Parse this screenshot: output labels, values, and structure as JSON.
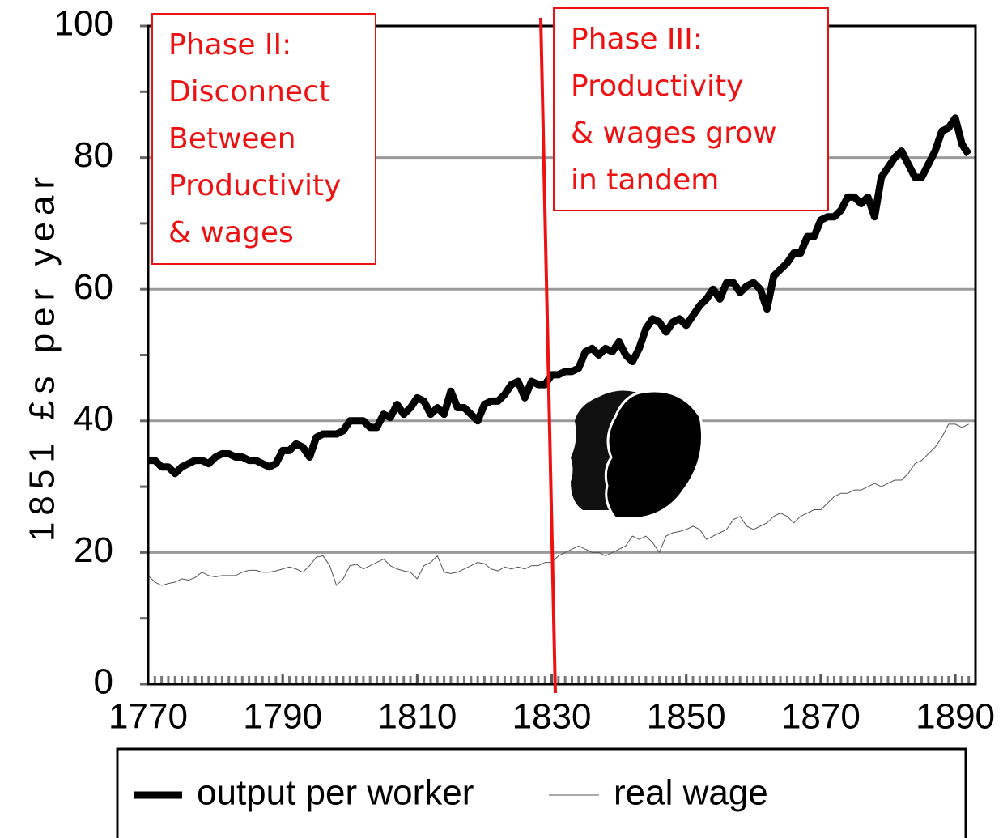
{
  "chart_data": {
    "type": "line",
    "ylabel": "1851 £s per year",
    "x": [
      1770,
      1771,
      1772,
      1773,
      1774,
      1775,
      1776,
      1777,
      1778,
      1779,
      1780,
      1781,
      1782,
      1783,
      1784,
      1785,
      1786,
      1787,
      1788,
      1789,
      1790,
      1791,
      1792,
      1793,
      1794,
      1795,
      1796,
      1797,
      1798,
      1799,
      1800,
      1801,
      1802,
      1803,
      1804,
      1805,
      1806,
      1807,
      1808,
      1809,
      1810,
      1811,
      1812,
      1813,
      1814,
      1815,
      1816,
      1817,
      1818,
      1819,
      1820,
      1821,
      1822,
      1823,
      1824,
      1825,
      1826,
      1827,
      1828,
      1829,
      1830,
      1831,
      1832,
      1833,
      1834,
      1835,
      1836,
      1837,
      1838,
      1839,
      1840,
      1841,
      1842,
      1843,
      1844,
      1845,
      1846,
      1847,
      1848,
      1849,
      1850,
      1851,
      1852,
      1853,
      1854,
      1855,
      1856,
      1857,
      1858,
      1859,
      1860,
      1861,
      1862,
      1863,
      1864,
      1865,
      1866,
      1867,
      1868,
      1869,
      1870,
      1871,
      1872,
      1873,
      1874,
      1875,
      1876,
      1877,
      1878,
      1879,
      1880,
      1881,
      1882,
      1883,
      1884,
      1885,
      1886,
      1887,
      1888,
      1889,
      1890,
      1891,
      1892
    ],
    "series": [
      {
        "name": "output per worker",
        "color": "#000000",
        "width": 9,
        "values": [
          34,
          34,
          33,
          33,
          32,
          33,
          33.5,
          34,
          34,
          33.5,
          34.5,
          35,
          35,
          34.5,
          34.5,
          34,
          34,
          33.5,
          33,
          33.5,
          35.5,
          35.5,
          36.5,
          36,
          34.5,
          37.5,
          38,
          38,
          38,
          38.5,
          40,
          40,
          40,
          39,
          39,
          41,
          40.5,
          42.5,
          41,
          42,
          43.5,
          43,
          41,
          42,
          41,
          44.5,
          42,
          42,
          41,
          40,
          42.5,
          43,
          43,
          44,
          45.5,
          46,
          43.5,
          46,
          45.5,
          45.5,
          47,
          47,
          47.5,
          47.5,
          48,
          50.5,
          51,
          50,
          51,
          50.5,
          52,
          50,
          49,
          51,
          54,
          55.5,
          55,
          53.5,
          55,
          55.5,
          54.5,
          56,
          57.5,
          58.5,
          60,
          58.5,
          61,
          61,
          59.5,
          60.5,
          61,
          60,
          57,
          62,
          63,
          64,
          65.5,
          65.5,
          68,
          68,
          70.5,
          71,
          71,
          72,
          74,
          74,
          73,
          74,
          71,
          77,
          78.5,
          80,
          81,
          79,
          77,
          77,
          79,
          81,
          84,
          84.5,
          86,
          82,
          80.5
        ]
      },
      {
        "name": "real wage",
        "color": "#555555",
        "width": 1,
        "values": [
          16.5,
          15.5,
          15,
          15.3,
          15.5,
          16,
          15.8,
          16.2,
          17,
          16.5,
          16.3,
          16.5,
          16.5,
          16.5,
          17,
          17.3,
          17.3,
          17,
          17,
          17.2,
          17.5,
          17.8,
          17.5,
          17,
          18,
          19.3,
          19.5,
          18,
          15,
          16,
          18,
          18.2,
          17.5,
          18,
          18.5,
          19,
          18,
          17.5,
          17.2,
          17,
          16,
          18,
          18.5,
          19.5,
          17,
          16.8,
          17,
          17.5,
          18,
          18.5,
          18.3,
          17.5,
          17.2,
          17.8,
          17.5,
          17.8,
          17.5,
          18,
          18,
          18.5,
          18.5,
          19.5,
          20,
          20.5,
          21,
          20.5,
          20,
          20,
          19.5,
          20,
          20.5,
          21,
          22.5,
          22,
          22.5,
          21.5,
          20,
          22.5,
          23,
          23.2,
          23.5,
          24,
          23.5,
          22,
          22.5,
          23,
          23.5,
          25,
          25.5,
          24,
          23.5,
          24,
          24.5,
          25.5,
          26,
          25.5,
          24.5,
          25.5,
          26,
          26.5,
          26.5,
          27.5,
          28.5,
          29,
          29,
          29.5,
          29.5,
          30,
          30.5,
          30,
          30.5,
          31,
          31,
          32,
          33.5,
          34,
          35,
          36,
          37.5,
          39.5,
          39.5,
          39,
          39.5
        ]
      }
    ],
    "xlim": [
      1770,
      1893
    ],
    "xticks": [
      1770,
      1790,
      1810,
      1830,
      1850,
      1870,
      1890
    ],
    "ylim": [
      0,
      100
    ],
    "yticks": [
      0,
      20,
      40,
      60,
      80,
      100
    ],
    "yminorticks": [
      10,
      30,
      50,
      70,
      90
    ],
    "grid": true,
    "annotations": [
      {
        "lines": [
          "Phase II:",
          "Disconnect",
          "Between",
          "Productivity",
          "& wages"
        ],
        "color": "#ee1111"
      },
      {
        "lines": [
          "Phase III:",
          "Productivity",
          "& wages grow",
          "in tandem"
        ],
        "color": "#ee1111"
      }
    ],
    "legend": "bottom"
  }
}
